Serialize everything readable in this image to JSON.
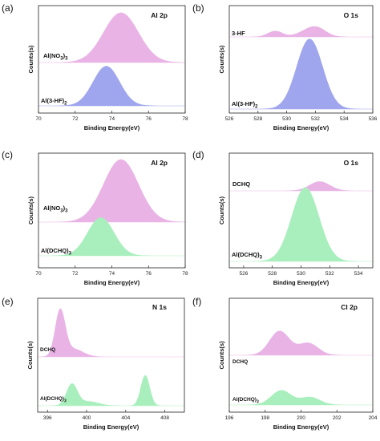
{
  "colors": {
    "pink": "#e9b3e6",
    "blue": "#9fa6ee",
    "green": "#a9efbd"
  },
  "chart_data": [
    {
      "id": "a",
      "type": "area",
      "panel_label": "(a)",
      "title": "Al 2p",
      "xlabel": "Binding Energy(eV)",
      "ylabel": "Counts(s)",
      "xlim": [
        70,
        78
      ],
      "xticks": [
        70,
        72,
        74,
        76,
        78
      ],
      "series": [
        {
          "label": "Al(NO3)3",
          "label_main": "Al(NO",
          "label_sub": "3",
          "label_after": ")",
          "label_sub2": "3",
          "color": "pink",
          "offset": 0.56,
          "peaks": [
            [
              74.5,
              1.0,
              0.95
            ]
          ]
        },
        {
          "label": "Al(3-HF)2",
          "label_main": "Al(3-HF)",
          "label_sub": "2",
          "label_after": "",
          "label_sub2": "",
          "color": "blue",
          "offset": 0.0,
          "peaks": [
            [
              73.7,
              0.95,
              0.72
            ]
          ]
        }
      ]
    },
    {
      "id": "b",
      "type": "area",
      "panel_label": "(b)",
      "title": "O 1s",
      "xlabel": "Binding Energy(eV)",
      "ylabel": "Counts(s)",
      "xlim": [
        526,
        536
      ],
      "xticks": [
        526,
        528,
        530,
        532,
        534,
        536
      ],
      "series": [
        {
          "label": "3-HF",
          "label_main": "3-HF",
          "label_sub": "",
          "label_after": "",
          "label_sub2": "",
          "color": "pink",
          "offset": 0.72,
          "peaks": [
            [
              529.2,
              0.2,
              0.5
            ],
            [
              531.6,
              0.22,
              0.75
            ],
            [
              532.2,
              0.18,
              0.6
            ]
          ]
        },
        {
          "label": "Al(3-HF)2",
          "label_main": "Al(3-HF)",
          "label_sub": "2",
          "label_after": "",
          "label_sub2": "",
          "color": "blue",
          "offset": 0.0,
          "peaks": [
            [
              531.6,
              0.97,
              0.9
            ]
          ]
        }
      ]
    },
    {
      "id": "c",
      "type": "area",
      "panel_label": "(c)",
      "title": "Al 2p",
      "xlabel": "Binding Energy(eV)",
      "ylabel": "Counts(s)",
      "xlim": [
        70,
        78
      ],
      "xticks": [
        70,
        72,
        74,
        76,
        78
      ],
      "series": [
        {
          "label": "Al(NO3)3",
          "label_main": "Al(NO",
          "label_sub": "3",
          "label_after": ")",
          "label_sub2": "3",
          "color": "pink",
          "offset": 0.5,
          "peaks": [
            [
              74.5,
              1.0,
              0.95
            ]
          ]
        },
        {
          "label": "Al(DCHQ)3",
          "label_main": "Al(DCHQ)",
          "label_sub": "3",
          "label_after": "",
          "label_sub2": "",
          "color": "green",
          "offset": 0.0,
          "peaks": [
            [
              73.4,
              0.95,
              0.72
            ]
          ]
        }
      ]
    },
    {
      "id": "d",
      "type": "area",
      "panel_label": "(d)",
      "title": "O 1s",
      "xlabel": "Binding Energy(eV)",
      "ylabel": "Counts(s)",
      "xlim": [
        525,
        535
      ],
      "xticks": [
        526,
        528,
        530,
        532,
        534
      ],
      "series": [
        {
          "label": "DCHQ",
          "label_main": "DCHQ",
          "label_sub": "",
          "label_after": "",
          "label_sub2": "",
          "color": "pink",
          "offset": 0.72,
          "peaks": [
            [
              531.3,
              0.36,
              0.7
            ]
          ]
        },
        {
          "label": "Al(DCHQ)3",
          "label_main": "Al(DCHQ)",
          "label_sub": "3",
          "label_after": "",
          "label_sub2": "",
          "color": "green",
          "offset": 0.0,
          "peaks": [
            [
              530.3,
              1.0,
              0.95
            ]
          ]
        }
      ]
    },
    {
      "id": "e",
      "type": "area",
      "panel_label": "(e)",
      "title": "N 1s",
      "xlabel": "Binding Energy(eV)",
      "ylabel": "Counts(s)",
      "xlim": [
        395,
        410
      ],
      "xticks": [
        396,
        400,
        404,
        408
      ],
      "series": [
        {
          "label": "DCHQ",
          "label_main": "DCHQ",
          "label_sub": "",
          "label_after": "",
          "label_sub2": "",
          "color": "pink",
          "offset": 0.47,
          "peaks": [
            [
              397.3,
              0.68,
              0.5
            ],
            [
              398.6,
              0.12,
              1.0
            ]
          ]
        },
        {
          "label": "Al(DCHQ)3",
          "label_main": "Al(DCHQ)",
          "label_sub": "3",
          "label_after": "",
          "label_sub2": "",
          "color": "green",
          "offset": 0.0,
          "peaks": [
            [
              398.5,
              0.3,
              0.55
            ],
            [
              400.2,
              0.06,
              1.0
            ],
            [
              406.0,
              0.43,
              0.45
            ]
          ]
        }
      ]
    },
    {
      "id": "f",
      "type": "area",
      "panel_label": "(f)",
      "title": "Cl 2p",
      "xlabel": "Binding Energy(eV)",
      "ylabel": "Counts(s)",
      "xlim": [
        196,
        204
      ],
      "xticks": [
        196,
        198,
        200,
        202,
        204
      ],
      "series": [
        {
          "label": "DCHQ",
          "label_main": "DCHQ",
          "label_sub": "",
          "label_after": "",
          "label_sub2": "",
          "color": "pink",
          "offset": 0.42,
          "peaks": [
            [
              198.8,
              0.5,
              0.55
            ],
            [
              200.4,
              0.25,
              0.55
            ]
          ]
        },
        {
          "label": "Al(DCHQ)3",
          "label_main": "Al(DCHQ)",
          "label_sub": "3",
          "label_after": "",
          "label_sub2": "",
          "color": "green",
          "offset": 0.0,
          "peaks": [
            [
              198.9,
              0.3,
              0.55
            ],
            [
              200.5,
              0.16,
              0.55
            ]
          ]
        }
      ]
    }
  ]
}
